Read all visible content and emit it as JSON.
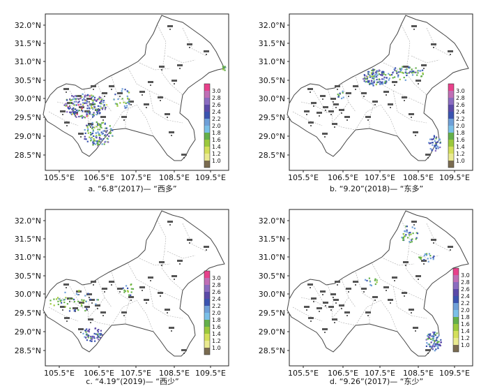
{
  "lat_ticks": [
    "32.0°N",
    "31.5°N",
    "31.0°N",
    "30.5°N",
    "30.0°N",
    "29.5°N",
    "29.0°N",
    "28.5°N"
  ],
  "lon_ticks": [
    "105.5°E",
    "106.5°E",
    "107.5°E",
    "108.5°E",
    "109.5°E"
  ],
  "legend_values": [
    "3.0",
    "2.8",
    "2.6",
    "2.4",
    "2.2",
    "2.0",
    "1.8",
    "1.6",
    "1.4",
    "1.2",
    "1.0"
  ],
  "colors": {
    "legend": [
      "#e8418b",
      "#c06fb6",
      "#8b6cc0",
      "#5b4aa8",
      "#3b54b0",
      "#6fa0d8",
      "#7bc0e8",
      "#64b04a",
      "#9cc93c",
      "#d4df5a",
      "#eaea90",
      "#7a6b50"
    ],
    "map_fill": "#ffffff",
    "border": "#444444",
    "district": "#aaaaaa"
  },
  "panels": [
    {
      "caption": "a. “6.8”(2017)— “西多”",
      "pattern": "west-many"
    },
    {
      "caption": "b. “9.20”(2018)— “东多”",
      "pattern": "east-many"
    },
    {
      "caption": "c. “4.19”(2019)— “西少”",
      "pattern": "west-few"
    },
    {
      "caption": "d. “9.26”(2017)— “东少”",
      "pattern": "east-few"
    }
  ]
}
